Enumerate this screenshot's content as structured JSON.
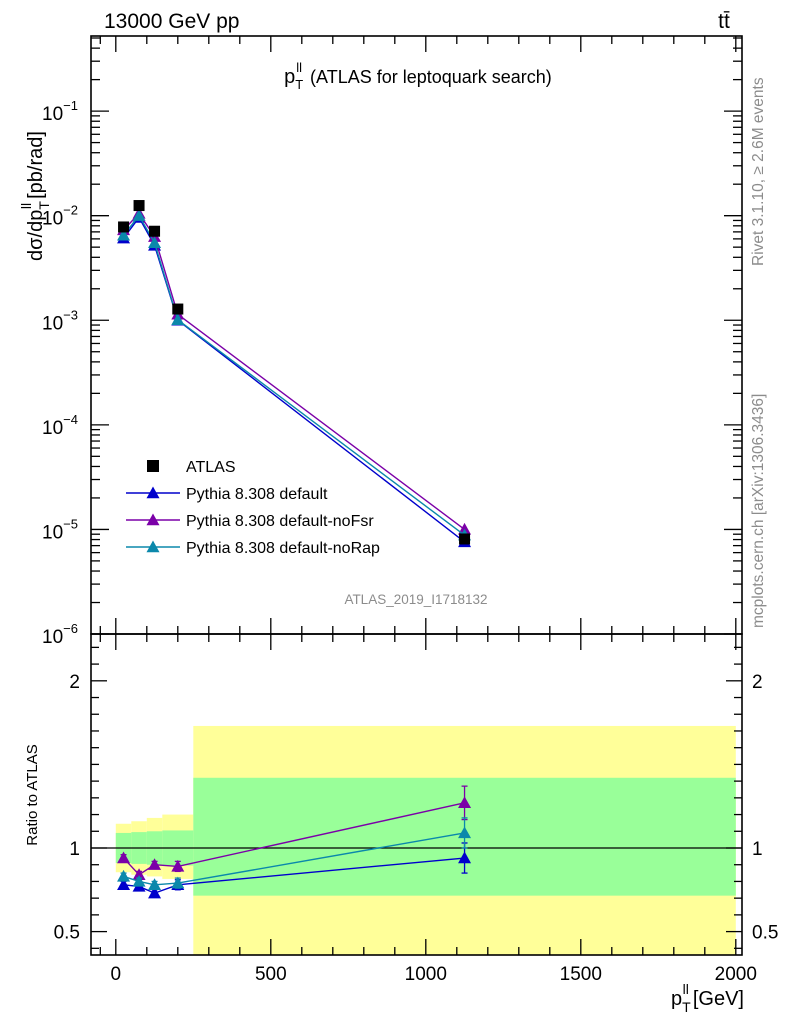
{
  "header": {
    "left": "13000 GeV pp",
    "right": "tt̄"
  },
  "side_labels": {
    "rivet": "Rivet 3.1.10, ≥ 2.6M events",
    "mcplots": "mcplots.cern.ch [arXiv:1306.3436]"
  },
  "chart_data": [
    {
      "type": "line",
      "title": "(ATLAS for leptoquark search)",
      "title_var": "p",
      "ylabel": "dσ/dp_T^ll [pb/rad]",
      "yscale": "log",
      "ylim": [
        1e-06,
        0.5
      ],
      "xlim": [
        -80,
        2020
      ],
      "y_ticks": [
        {
          "v": 1e-06,
          "label": "10",
          "exp": "−6"
        },
        {
          "v": 1e-05,
          "label": "10",
          "exp": "−5"
        },
        {
          "v": 0.0001,
          "label": "10",
          "exp": "−4"
        },
        {
          "v": 0.001,
          "label": "10",
          "exp": "−3"
        },
        {
          "v": 0.01,
          "label": "10",
          "exp": "−2"
        },
        {
          "v": 0.1,
          "label": "10",
          "exp": "−1"
        }
      ],
      "watermark": "ATLAS_2019_I1718132",
      "legend_position": "bottom-left",
      "x": [
        25,
        75,
        125,
        200,
        1125
      ],
      "data": {
        "name": "ATLAS",
        "color": "#000000",
        "values": [
          0.0078,
          0.0125,
          0.0071,
          0.00128,
          8.1e-06
        ],
        "yerr": [
          0.0004,
          0.0006,
          0.0004,
          7e-05,
          7e-07
        ]
      },
      "series": [
        {
          "name": "Pythia 8.308 default",
          "color": "#0000cc",
          "values": [
            0.0061,
            0.0096,
            0.0052,
            0.001,
            7.6e-06
          ],
          "yerr": [
            0.0002,
            0.0003,
            0.0002,
            4e-05,
            6e-07
          ]
        },
        {
          "name": "Pythia 8.308 default-noFsr",
          "color": "#7b00a8",
          "values": [
            0.0073,
            0.0105,
            0.0063,
            0.00114,
            1e-05
          ],
          "yerr": [
            0.0002,
            0.0003,
            0.0002,
            4e-05,
            8e-07
          ]
        },
        {
          "name": "Pythia 8.308 default-noRap",
          "color": "#0b88ab",
          "values": [
            0.0065,
            0.01,
            0.0055,
            0.00101,
            8.8e-06
          ],
          "yerr": [
            0.0002,
            0.0003,
            0.0002,
            4e-05,
            7e-07
          ]
        }
      ]
    },
    {
      "type": "line",
      "ylabel": "Ratio to ATLAS",
      "xlabel": "p_T^ll [GeV]",
      "ylim": [
        0.36,
        2.28
      ],
      "xlim": [
        -80,
        2020
      ],
      "y_ticks": [
        {
          "v": 0.5,
          "label": "0.5"
        },
        {
          "v": 1,
          "label": "1"
        },
        {
          "v": 2,
          "label": "2"
        }
      ],
      "x_ticks": [
        {
          "v": 0,
          "label": "0"
        },
        {
          "v": 500,
          "label": "500"
        },
        {
          "v": 1000,
          "label": "1000"
        },
        {
          "v": 1500,
          "label": "1500"
        },
        {
          "v": 2000,
          "label": "2000"
        }
      ],
      "bands": [
        {
          "x0": 0,
          "x1": 50,
          "yellow": [
            0.855,
            1.145
          ],
          "green": [
            0.91,
            1.09
          ]
        },
        {
          "x0": 50,
          "x1": 100,
          "yellow": [
            0.84,
            1.16
          ],
          "green": [
            0.905,
            1.095
          ]
        },
        {
          "x0": 100,
          "x1": 150,
          "yellow": [
            0.83,
            1.18
          ],
          "green": [
            0.9,
            1.1
          ]
        },
        {
          "x0": 150,
          "x1": 250,
          "yellow": [
            0.815,
            1.2
          ],
          "green": [
            0.895,
            1.105
          ]
        },
        {
          "x0": 250,
          "x1": 2000,
          "yellow": [
            0.36,
            1.73
          ],
          "green": [
            0.715,
            1.42
          ]
        }
      ],
      "x": [
        25,
        75,
        125,
        200,
        1125
      ],
      "series": [
        {
          "name": "Pythia 8.308 default",
          "color": "#0000cc",
          "values": [
            0.78,
            0.77,
            0.73,
            0.78,
            0.94
          ],
          "yerr": [
            0.02,
            0.02,
            0.02,
            0.03,
            0.09
          ]
        },
        {
          "name": "Pythia 8.308 default-noFsr",
          "color": "#7b00a8",
          "values": [
            0.94,
            0.84,
            0.9,
            0.89,
            1.27
          ],
          "yerr": [
            0.02,
            0.02,
            0.02,
            0.03,
            0.1
          ]
        },
        {
          "name": "Pythia 8.308 default-noRap",
          "color": "#0b88ab",
          "values": [
            0.83,
            0.8,
            0.78,
            0.79,
            1.09
          ],
          "yerr": [
            0.02,
            0.02,
            0.02,
            0.03,
            0.09
          ]
        }
      ]
    }
  ]
}
